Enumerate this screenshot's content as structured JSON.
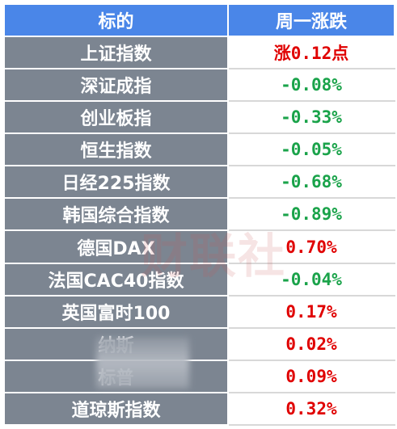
{
  "table": {
    "header": {
      "name": "标的",
      "change": "周一涨跌"
    },
    "rows": [
      {
        "name": "上证指数",
        "change": "涨0.12点",
        "direction": "up"
      },
      {
        "name": "深证成指",
        "change": "-0.08%",
        "direction": "down"
      },
      {
        "name": "创业板指",
        "change": "-0.33%",
        "direction": "down"
      },
      {
        "name": "恒生指数",
        "change": "-0.05%",
        "direction": "down"
      },
      {
        "name": "日经225指数",
        "change": "-0.68%",
        "direction": "down"
      },
      {
        "name": "韩国综合指数",
        "change": "-0.89%",
        "direction": "down"
      },
      {
        "name": "德国DAX",
        "change": "0.70%",
        "direction": "up"
      },
      {
        "name": "法国CAC40指数",
        "change": "-0.04%",
        "direction": "down"
      },
      {
        "name": "英国富时100",
        "change": "0.17%",
        "direction": "up"
      },
      {
        "name": "纳斯",
        "change": "0.02%",
        "direction": "up"
      },
      {
        "name": "标普",
        "change": "0.09%",
        "direction": "up"
      },
      {
        "name": "道琼斯指数",
        "change": "0.32%",
        "direction": "up"
      }
    ]
  },
  "watermark": "财联社",
  "colors": {
    "header_bg": "#4a86e8",
    "name_bg": "#7c8591",
    "up": "#e00000",
    "down": "#1aa34a"
  }
}
